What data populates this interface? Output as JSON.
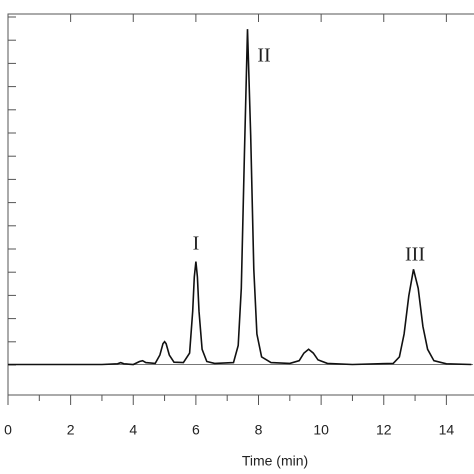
{
  "chart_data": {
    "type": "line",
    "xlabel": "Time (min)",
    "x": [
      0,
      3.0,
      3.5,
      3.6,
      3.7,
      4.0,
      4.2,
      4.3,
      4.4,
      4.7,
      4.85,
      4.95,
      5.0,
      5.05,
      5.15,
      5.3,
      5.6,
      5.8,
      5.9,
      5.95,
      6.0,
      6.05,
      6.1,
      6.2,
      6.35,
      6.6,
      7.2,
      7.35,
      7.45,
      7.55,
      7.65,
      7.75,
      7.85,
      7.95,
      8.1,
      8.4,
      9.0,
      9.3,
      9.45,
      9.6,
      9.75,
      9.9,
      10.2,
      11.0,
      12.3,
      12.5,
      12.65,
      12.8,
      12.95,
      13.1,
      13.25,
      13.4,
      13.6,
      14.0,
      14.8
    ],
    "series": [
      {
        "color": "#111111",
        "values": [
          0,
          0,
          0.2,
          0.5,
          0.2,
          0,
          0.8,
          1,
          0.5,
          0.3,
          2.5,
          5.5,
          6,
          5.5,
          2.5,
          0.6,
          0.5,
          3,
          14,
          23,
          27,
          23,
          14,
          4,
          0.8,
          0.3,
          0.5,
          5,
          20,
          55,
          88,
          60,
          25,
          8,
          2,
          0.5,
          0.3,
          1,
          3,
          4,
          3,
          1.2,
          0.3,
          0,
          0.3,
          2,
          8,
          18,
          25,
          20,
          10,
          4,
          1,
          0.2,
          0
        ]
      }
    ],
    "xlim": [
      0,
      14.85
    ],
    "ylim": [
      -8,
      92
    ],
    "xticks": [
      0,
      2,
      4,
      6,
      8,
      10,
      12,
      14
    ],
    "annotations": [
      "I",
      "II",
      "III"
    ]
  }
}
